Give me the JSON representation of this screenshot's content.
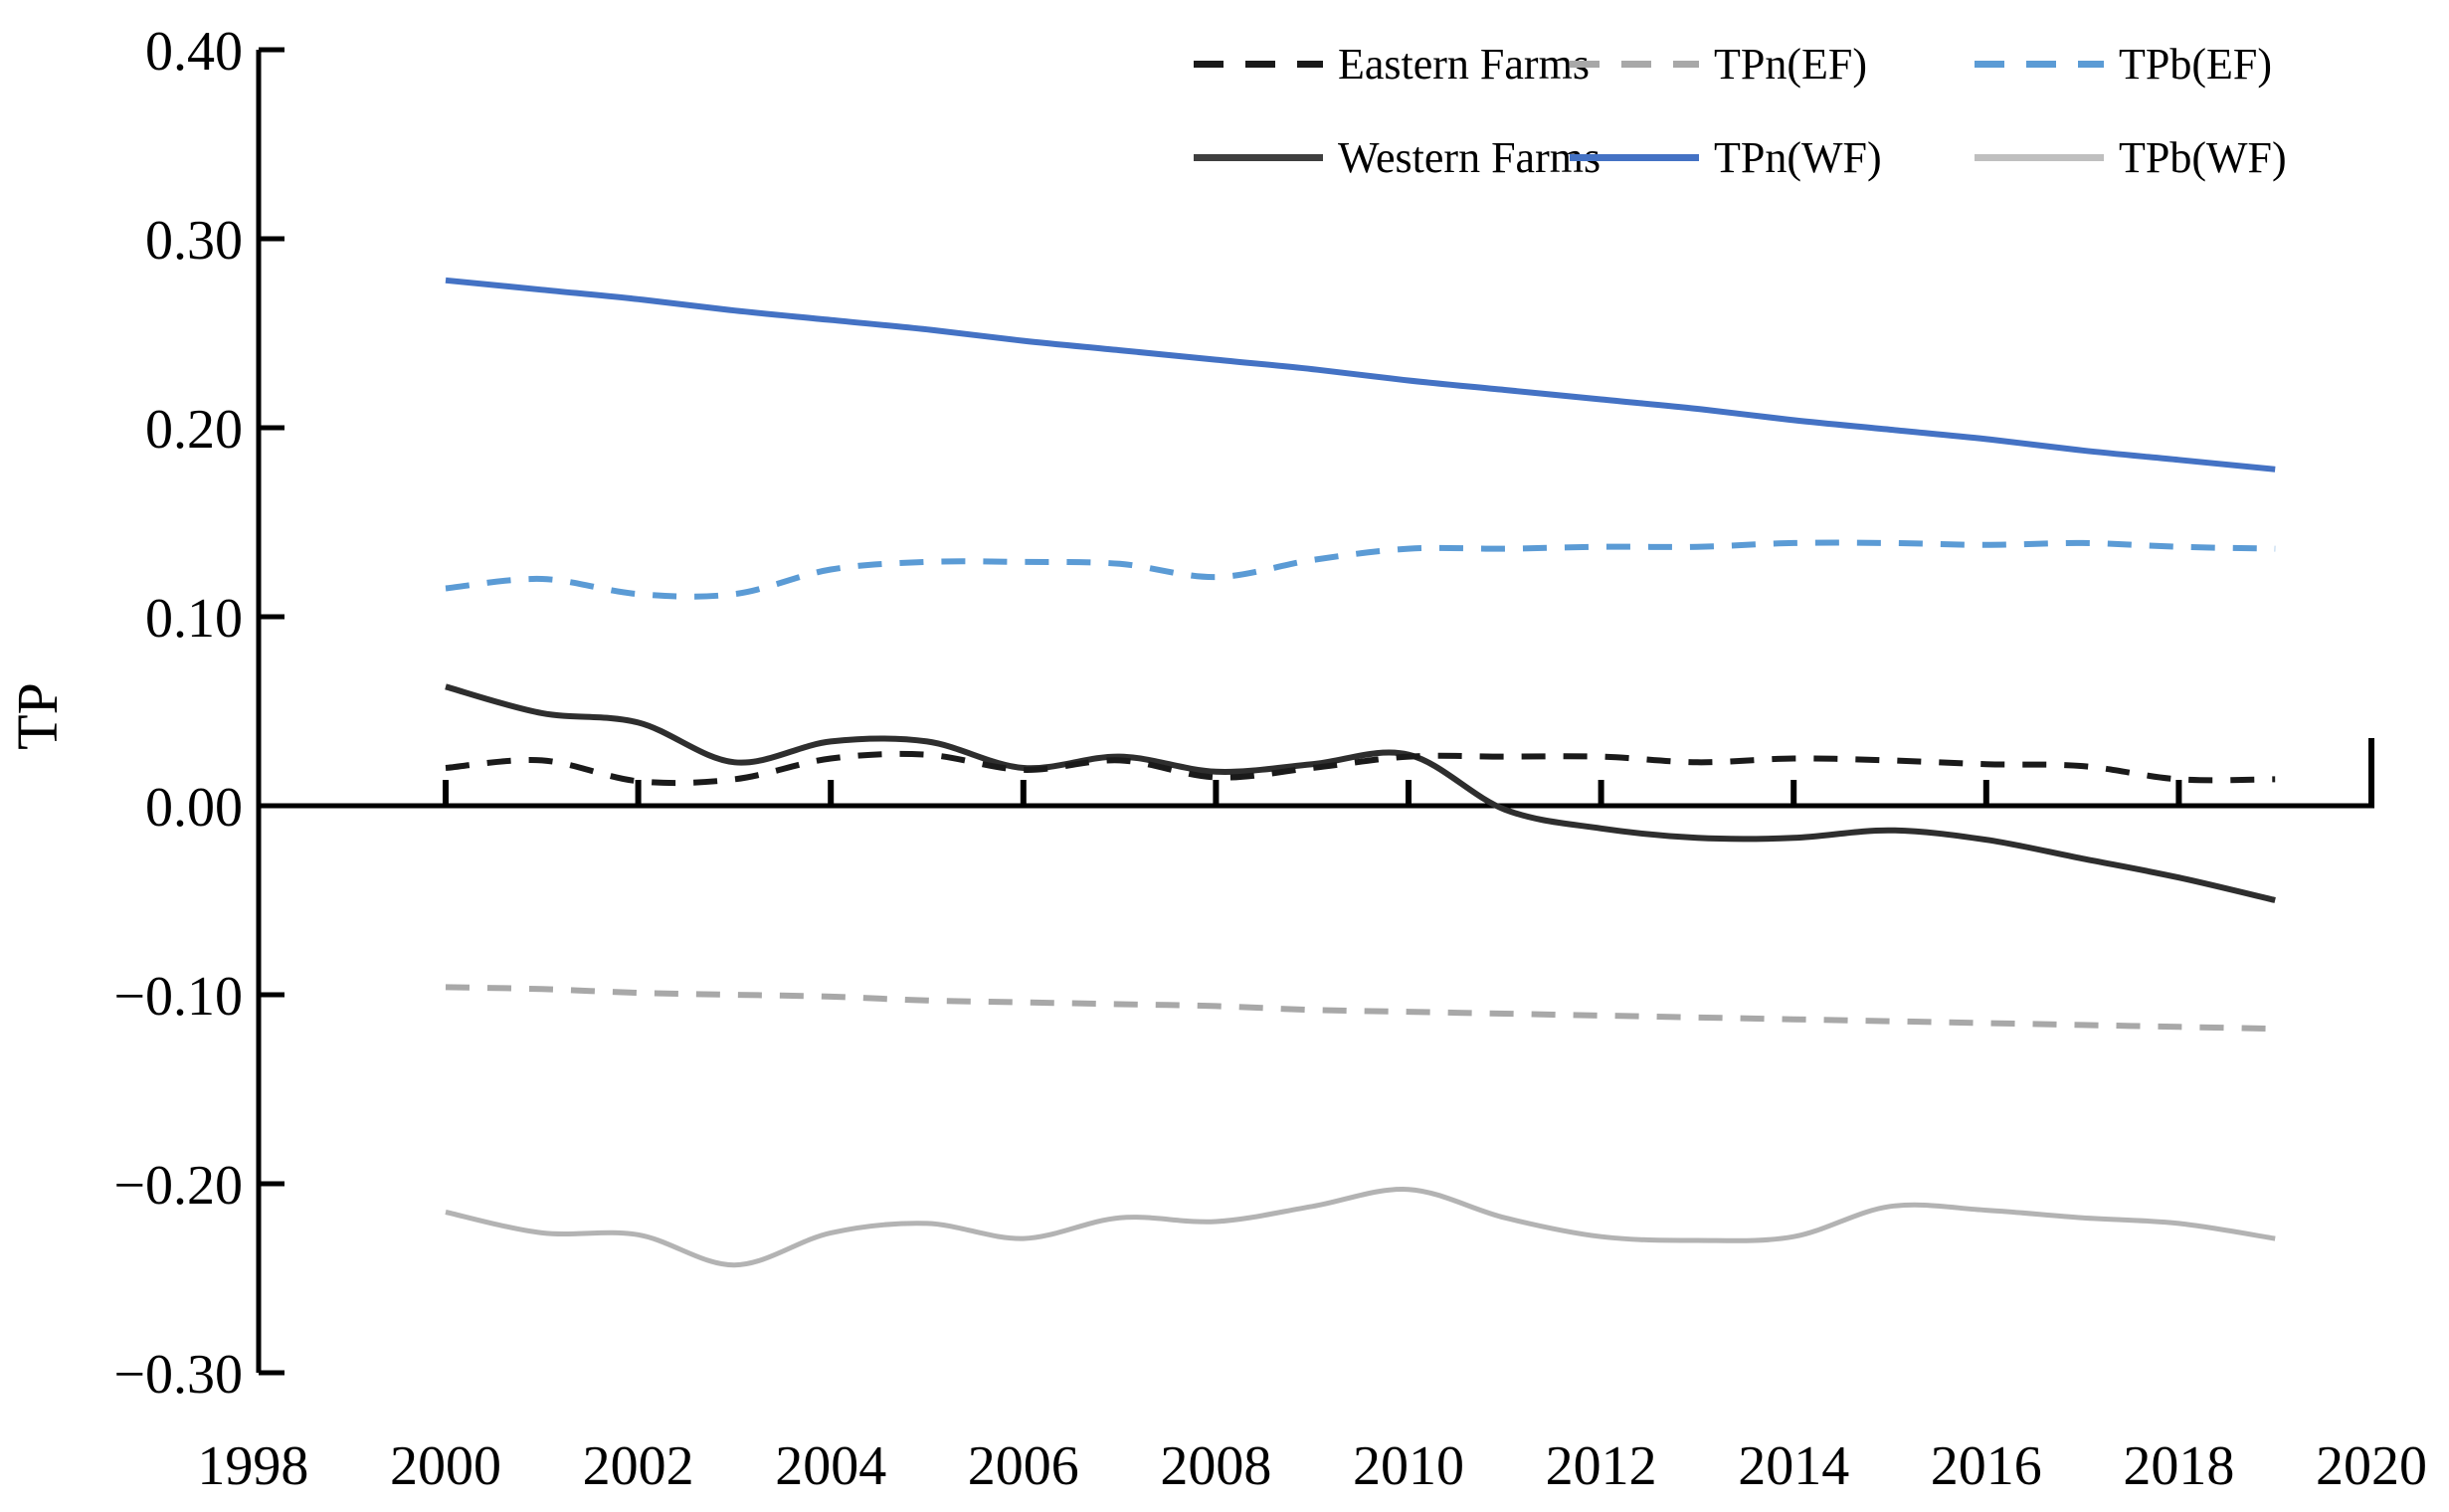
{
  "figure": {
    "ylabel": "TP"
  },
  "chart_data": {
    "type": "line",
    "title": "",
    "xlabel": "",
    "ylabel": "TP",
    "x": [
      2000,
      2001,
      2002,
      2003,
      2004,
      2005,
      2006,
      2007,
      2008,
      2009,
      2010,
      2011,
      2012,
      2013,
      2014,
      2015,
      2016,
      2017,
      2018,
      2019
    ],
    "xticks": [
      1998,
      2000,
      2002,
      2004,
      2006,
      2008,
      2010,
      2012,
      2014,
      2016,
      2018,
      2020
    ],
    "xtick_labels": [
      "1998",
      "2000",
      "2002",
      "2004",
      "2006",
      "2008",
      "2010",
      "2012",
      "2014",
      "2016",
      "2018",
      "2020"
    ],
    "yticks": [
      0.4,
      0.3,
      0.2,
      0.1,
      0.0,
      -0.1,
      -0.2,
      -0.3
    ],
    "ytick_labels": [
      "0.40",
      "0.30",
      "0.20",
      "0.10",
      "0.00",
      "−0.10",
      "−0.20",
      "−0.30"
    ],
    "xlim": [
      1998,
      2020
    ],
    "ylim": [
      -0.3,
      0.4
    ],
    "grid": false,
    "legend_position": "top-right",
    "axis_color": "#000000",
    "series": [
      {
        "name": "TPn(WF)",
        "color": "#4472c4",
        "style": "solid",
        "width": 6,
        "values": [
          0.278,
          0.273,
          0.268,
          0.262,
          0.257,
          0.252,
          0.246,
          0.241,
          0.236,
          0.231,
          0.225,
          0.22,
          0.215,
          0.21,
          0.204,
          0.199,
          0.194,
          0.188,
          0.183,
          0.178
        ]
      },
      {
        "name": "TPb(EF)",
        "color": "#5b9bd5",
        "style": "dashed",
        "width": 6,
        "values": [
          0.115,
          0.12,
          0.112,
          0.112,
          0.125,
          0.129,
          0.129,
          0.128,
          0.121,
          0.13,
          0.136,
          0.136,
          0.137,
          0.137,
          0.139,
          0.139,
          0.138,
          0.139,
          0.137,
          0.136
        ]
      },
      {
        "name": "TPn(EF)",
        "color": "#a8a8a8",
        "style": "dashed",
        "width": 6,
        "values": [
          -0.096,
          -0.097,
          -0.099,
          -0.1,
          -0.101,
          -0.103,
          -0.104,
          -0.105,
          -0.106,
          -0.108,
          -0.109,
          -0.11,
          -0.111,
          -0.112,
          -0.113,
          -0.114,
          -0.115,
          -0.116,
          -0.117,
          -0.118
        ]
      },
      {
        "name": "TPb(WF)",
        "color": "#b3b3b3",
        "style": "solid",
        "width": 5,
        "values": [
          -0.215,
          -0.226,
          -0.227,
          -0.243,
          -0.226,
          -0.221,
          -0.229,
          -0.218,
          -0.22,
          -0.212,
          -0.203,
          -0.218,
          -0.228,
          -0.23,
          -0.228,
          -0.212,
          -0.214,
          -0.218,
          -0.221,
          -0.229
        ]
      },
      {
        "name": "Western Farms",
        "color": "#2e2e2e",
        "style": "solid",
        "width": 6,
        "values": [
          0.063,
          0.049,
          0.044,
          0.023,
          0.034,
          0.034,
          0.02,
          0.026,
          0.018,
          0.022,
          0.027,
          -0.002,
          -0.012,
          -0.017,
          -0.017,
          -0.013,
          -0.018,
          -0.028,
          -0.038,
          -0.05
        ]
      },
      {
        "name": "Eastern Farms",
        "color": "#1a1a1a",
        "style": "dashed",
        "width": 6,
        "values": [
          0.02,
          0.024,
          0.013,
          0.014,
          0.025,
          0.027,
          0.019,
          0.024,
          0.015,
          0.02,
          0.026,
          0.026,
          0.026,
          0.023,
          0.025,
          0.024,
          0.022,
          0.021,
          0.014,
          0.014
        ]
      }
    ]
  },
  "legend": {
    "rows": [
      [
        {
          "label": "Eastern Farms",
          "swatch": "dashed",
          "color": "#1a1a1a"
        },
        {
          "label": "TPn(EF)",
          "swatch": "dashed",
          "color": "#a8a8a8"
        },
        {
          "label": "TPb(EF)",
          "swatch": "dashed",
          "color": "#5b9bd5"
        }
      ],
      [
        {
          "label": "Western Farms",
          "swatch": "solid",
          "color": "#3f3f3f"
        },
        {
          "label": "TPn(WF)",
          "swatch": "solid",
          "color": "#4472c4"
        },
        {
          "label": "TPb(WF)",
          "swatch": "solid",
          "color": "#bfbfbf"
        }
      ]
    ]
  }
}
